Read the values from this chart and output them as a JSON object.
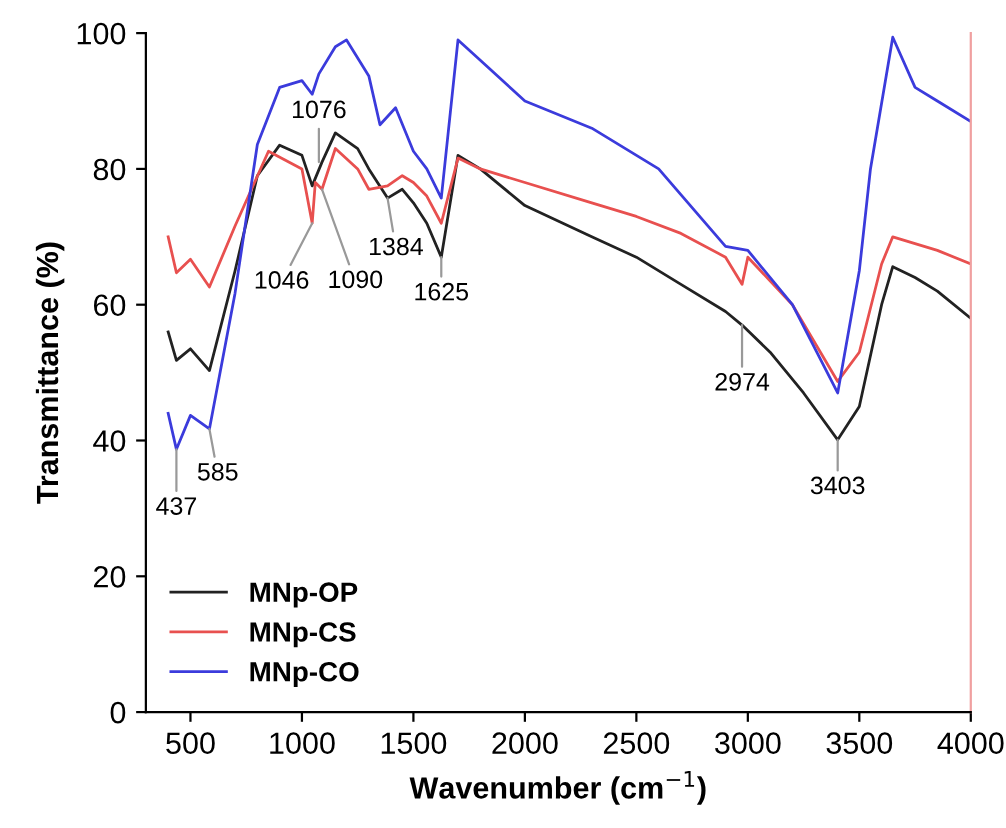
{
  "chart_data": {
    "type": "line",
    "xlabel": "Wavenumber (cm$^{−1}$)",
    "ylabel": "Transmittance (%)",
    "xlim": [
      300,
      4000
    ],
    "xticks": [
      500,
      1000,
      1500,
      2000,
      2500,
      3000,
      3500,
      4000
    ],
    "ylim": [
      0,
      100
    ],
    "yticks": [
      0,
      20,
      40,
      60,
      80,
      100
    ],
    "grid": false,
    "legend": "bottom left",
    "marker": "none",
    "line_style": "solid",
    "series": [
      {
        "name": "MNp-OP",
        "color": "#222222",
        "x": [
          400,
          437,
          500,
          585,
          700,
          800,
          900,
          1000,
          1046,
          1090,
          1150,
          1250,
          1300,
          1384,
          1450,
          1500,
          1560,
          1625,
          1700,
          1800,
          2000,
          2300,
          2500,
          2700,
          2900,
          2974,
          3100,
          3250,
          3403,
          3500,
          3600,
          3650,
          3750,
          3850,
          4000
        ],
        "values": [
          56,
          51.8,
          53.5,
          50.3,
          65,
          79,
          83.5,
          82,
          77.5,
          81,
          85.3,
          83,
          80,
          75.7,
          77,
          75,
          72,
          67,
          82,
          80,
          74.6,
          70,
          67,
          63,
          59,
          57,
          53,
          47,
          40.1,
          45,
          60,
          65.6,
          64,
          62,
          58
        ]
      },
      {
        "name": "MNp-CS",
        "color": "#e8504f",
        "x": [
          400,
          437,
          500,
          585,
          700,
          850,
          1000,
          1046,
          1060,
          1090,
          1150,
          1250,
          1300,
          1384,
          1450,
          1500,
          1560,
          1625,
          1700,
          1800,
          2000,
          2300,
          2500,
          2700,
          2900,
          2974,
          3000,
          3200,
          3403,
          3500,
          3600,
          3650,
          3750,
          3850,
          4000
        ],
        "values": [
          70,
          64.7,
          66.7,
          62.6,
          71.6,
          82.6,
          80,
          72,
          78,
          77,
          83,
          80,
          77,
          77.5,
          79,
          78,
          76,
          72,
          81.6,
          80,
          78,
          75,
          73,
          70.5,
          67,
          63,
          67,
          60,
          48.7,
          53,
          66,
          70,
          69,
          68,
          66
        ]
      },
      {
        "name": "MNp-CO",
        "color": "#3b3bdc",
        "x": [
          400,
          437,
          500,
          585,
          700,
          800,
          900,
          1000,
          1046,
          1076,
          1150,
          1200,
          1300,
          1350,
          1420,
          1500,
          1560,
          1625,
          1700,
          1800,
          2000,
          2300,
          2600,
          2900,
          3000,
          3200,
          3403,
          3500,
          3550,
          3650,
          3750,
          3850,
          4000
        ],
        "values": [
          44,
          38.7,
          43.7,
          41.7,
          61.7,
          83.6,
          92,
          93,
          91,
          94,
          98,
          99,
          93.7,
          86.5,
          89,
          82.6,
          80,
          75.7,
          99,
          96,
          90,
          86,
          80,
          68.6,
          68,
          60,
          47,
          65,
          80,
          99.4,
          92,
          90,
          87
        ]
      }
    ],
    "annotations": [
      {
        "text": "437",
        "x": 437,
        "y": 38.7
      },
      {
        "text": "585",
        "x": 585,
        "y": 41.7
      },
      {
        "text": "1046",
        "x": 1046,
        "y": 72
      },
      {
        "text": "1090",
        "x": 1090,
        "y": 77
      },
      {
        "text": "1076",
        "x": 1076,
        "y": 81
      },
      {
        "text": "1384",
        "x": 1384,
        "y": 75.7
      },
      {
        "text": "1625",
        "x": 1625,
        "y": 67
      },
      {
        "text": "2974",
        "x": 2974,
        "y": 57
      },
      {
        "text": "3403",
        "x": 3403,
        "y": 40.1
      }
    ]
  }
}
